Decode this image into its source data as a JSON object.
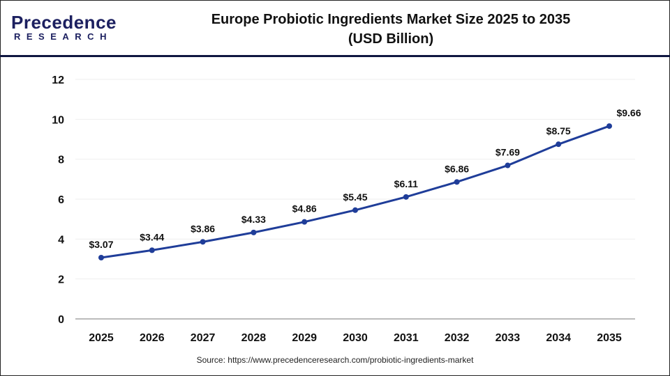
{
  "brand": {
    "line1": "Precedence",
    "line2": "RESEARCH"
  },
  "title_line1": "Europe Probiotic Ingredients Market Size 2025 to 2035",
  "title_line2": "(USD Billion)",
  "source": "Source: https://www.precedenceresearch.com/probiotic-ingredients-market",
  "chart_data": {
    "type": "line",
    "title": "Europe Probiotic Ingredients Market Size 2025 to 2035 (USD Billion)",
    "xlabel": "",
    "ylabel": "",
    "categories": [
      "2025",
      "2026",
      "2027",
      "2028",
      "2029",
      "2030",
      "2031",
      "2032",
      "2033",
      "2034",
      "2035"
    ],
    "values": [
      3.07,
      3.44,
      3.86,
      4.33,
      4.86,
      5.45,
      6.11,
      6.86,
      7.69,
      8.75,
      9.66
    ],
    "data_labels": [
      "$3.07",
      "$3.44",
      "$3.86",
      "$4.33",
      "$4.86",
      "$5.45",
      "$6.11",
      "$6.86",
      "$7.69",
      "$8.75",
      "$9.66"
    ],
    "ylim": [
      0,
      12
    ],
    "yticks": [
      "0",
      "2",
      "4",
      "6",
      "8",
      "10",
      "12"
    ],
    "grid": true,
    "line_color": "#1f3d99"
  }
}
